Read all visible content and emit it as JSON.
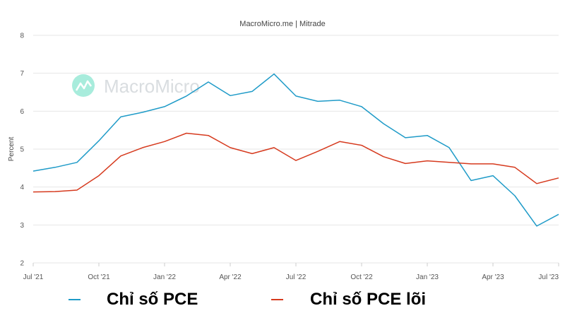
{
  "chart_data": {
    "type": "line",
    "title": "MacroMicro.me | Mitrade",
    "watermark": "MacroMicro",
    "ylabel": "Percent",
    "xlabel": "",
    "ylim": [
      2,
      8
    ],
    "yticks": [
      2,
      3,
      4,
      5,
      6,
      7,
      8
    ],
    "x": [
      "Jul '21",
      "Aug '21",
      "Sep '21",
      "Oct '21",
      "Nov '21",
      "Dec '21",
      "Jan '22",
      "Feb '22",
      "Mar '22",
      "Apr '22",
      "May '22",
      "Jun '22",
      "Jul '22",
      "Aug '22",
      "Sep '22",
      "Oct '22",
      "Nov '22",
      "Dec '22",
      "Jan '23",
      "Feb '23",
      "Mar '23",
      "Apr '23",
      "May '23",
      "Jun '23",
      "Jul '23"
    ],
    "xtick_labels": [
      {
        "index": 0,
        "label": "Jul '21"
      },
      {
        "index": 3,
        "label": "Oct '21"
      },
      {
        "index": 6,
        "label": "Jan '22"
      },
      {
        "index": 9,
        "label": "Apr '22"
      },
      {
        "index": 12,
        "label": "Jul '22"
      },
      {
        "index": 15,
        "label": "Oct '22"
      },
      {
        "index": 18,
        "label": "Jan '23"
      },
      {
        "index": 21,
        "label": "Apr '23"
      },
      {
        "index": 24,
        "label": "Jul '23"
      }
    ],
    "series": [
      {
        "name": "Chỉ số PCE",
        "color": "#1f9bc8",
        "values": [
          4.42,
          4.52,
          4.65,
          5.22,
          5.85,
          5.97,
          6.12,
          6.4,
          6.77,
          6.41,
          6.52,
          6.98,
          6.4,
          6.26,
          6.29,
          6.12,
          5.67,
          5.3,
          5.36,
          5.04,
          4.17,
          4.3,
          3.77,
          2.97,
          3.28
        ]
      },
      {
        "name": "Chỉ số PCE lõi",
        "color": "#d63a1e",
        "values": [
          3.87,
          3.88,
          3.92,
          4.3,
          4.82,
          5.04,
          5.2,
          5.42,
          5.36,
          5.04,
          4.88,
          5.04,
          4.7,
          4.94,
          5.2,
          5.1,
          4.8,
          4.62,
          4.69,
          4.65,
          4.61,
          4.61,
          4.52,
          4.09,
          4.24
        ]
      }
    ],
    "legend_position": "bottom"
  }
}
